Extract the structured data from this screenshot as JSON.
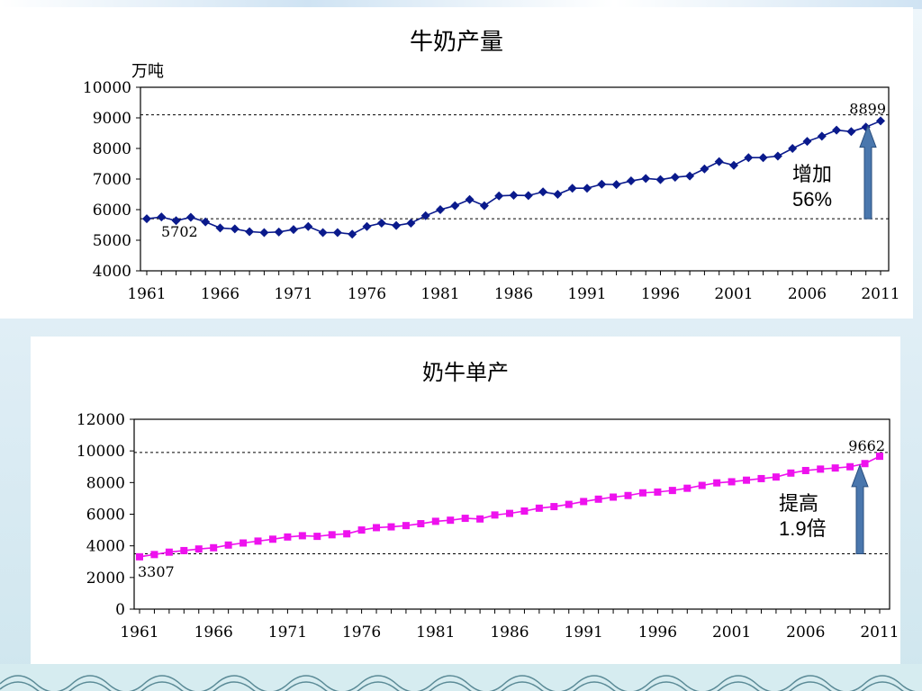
{
  "colors": {
    "series1": "#0a1a8c",
    "series2": "#ee11ee",
    "arrow": "#4a77ad",
    "arrow_stroke": "#2b4f7e"
  },
  "chart_data": [
    {
      "type": "line",
      "title": "牛奶产量",
      "ylabel": "万吨",
      "xlabel": "",
      "ylim": [
        4000,
        10000
      ],
      "yticks": [
        "4000",
        "5000",
        "6000",
        "7000",
        "8000",
        "9000",
        "10000"
      ],
      "xticks": [
        "1961",
        "1966",
        "1971",
        "1976",
        "1981",
        "1986",
        "1991",
        "1996",
        "2001",
        "2006",
        "2011"
      ],
      "x": [
        1961,
        1962,
        1963,
        1964,
        1965,
        1966,
        1967,
        1968,
        1969,
        1970,
        1971,
        1972,
        1973,
        1974,
        1975,
        1976,
        1977,
        1978,
        1979,
        1980,
        1981,
        1982,
        1983,
        1984,
        1985,
        1986,
        1987,
        1988,
        1989,
        1990,
        1991,
        1992,
        1993,
        1994,
        1995,
        1996,
        1997,
        1998,
        1999,
        2000,
        2001,
        2002,
        2003,
        2004,
        2005,
        2006,
        2007,
        2008,
        2009,
        2010,
        2011
      ],
      "series": [
        {
          "values": [
            5702,
            5760,
            5640,
            5750,
            5600,
            5400,
            5370,
            5280,
            5250,
            5270,
            5350,
            5450,
            5250,
            5250,
            5200,
            5450,
            5560,
            5480,
            5560,
            5800,
            6000,
            6130,
            6330,
            6130,
            6450,
            6470,
            6460,
            6580,
            6500,
            6700,
            6700,
            6830,
            6820,
            6940,
            7020,
            6980,
            7060,
            7100,
            7330,
            7570,
            7450,
            7700,
            7700,
            7750,
            8000,
            8230,
            8400,
            8600,
            8550,
            8700,
            8899
          ]
        }
      ],
      "reference_lines": [
        5702,
        9100
      ],
      "labels": {
        "start": "5702",
        "end": "8899"
      },
      "annotation": {
        "line1": "增加",
        "line2": "56%"
      }
    },
    {
      "type": "line",
      "title": "奶牛单产",
      "ylabel": "",
      "xlabel": "",
      "ylim": [
        0,
        12000
      ],
      "yticks": [
        "0",
        "2000",
        "4000",
        "6000",
        "8000",
        "10000",
        "12000"
      ],
      "xticks": [
        "1961",
        "1966",
        "1971",
        "1976",
        "1981",
        "1986",
        "1991",
        "1996",
        "2001",
        "2006",
        "2011"
      ],
      "x": [
        1961,
        1962,
        1963,
        1964,
        1965,
        1966,
        1967,
        1968,
        1969,
        1970,
        1971,
        1972,
        1973,
        1974,
        1975,
        1976,
        1977,
        1978,
        1979,
        1980,
        1981,
        1982,
        1983,
        1984,
        1985,
        1986,
        1987,
        1988,
        1989,
        1990,
        1991,
        1992,
        1993,
        1994,
        1995,
        1996,
        1997,
        1998,
        1999,
        2000,
        2001,
        2002,
        2003,
        2004,
        2005,
        2006,
        2007,
        2008,
        2009,
        2010,
        2011
      ],
      "series": [
        {
          "values": [
            3307,
            3450,
            3600,
            3700,
            3800,
            3880,
            4050,
            4180,
            4300,
            4420,
            4560,
            4640,
            4600,
            4700,
            4760,
            5000,
            5150,
            5200,
            5280,
            5400,
            5550,
            5620,
            5740,
            5700,
            5950,
            6050,
            6200,
            6380,
            6480,
            6620,
            6800,
            6950,
            7080,
            7180,
            7350,
            7400,
            7500,
            7640,
            7820,
            7980,
            8050,
            8150,
            8250,
            8350,
            8600,
            8760,
            8850,
            8920,
            9000,
            9200,
            9662
          ]
        }
      ],
      "reference_lines": [
        3500,
        9900
      ],
      "labels": {
        "start": "3307",
        "end": "9662"
      },
      "annotation": {
        "line1": "提高",
        "line2": "1.9倍"
      }
    }
  ]
}
